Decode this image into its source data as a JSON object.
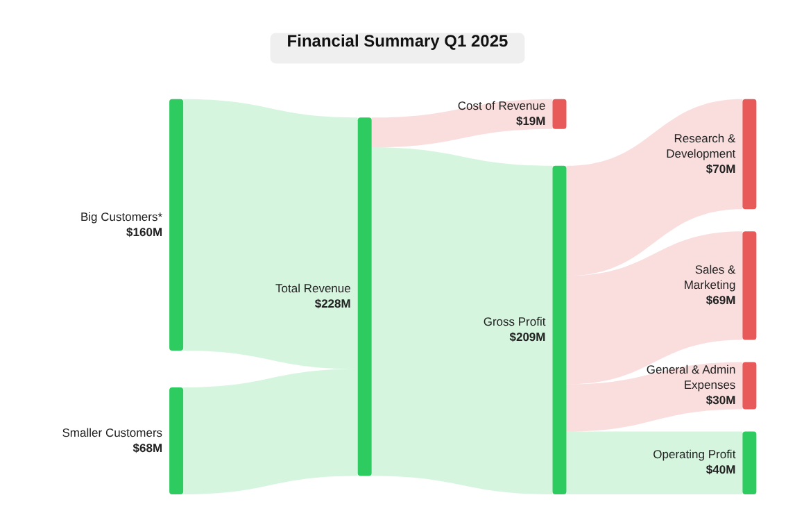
{
  "chart_data": {
    "type": "other",
    "title": "Financial Summary Q1 2025",
    "categories": [
      "Big Customers*",
      "Smaller Customers",
      "Total Revenue",
      "Cost of Revenue",
      "Gross Profit",
      "Research & Development",
      "Sales & Marketing",
      "General & Admin Expenses",
      "Operating Profit"
    ],
    "values": [
      160,
      68,
      228,
      19,
      209,
      70,
      69,
      30,
      40
    ],
    "value_labels": [
      "$160M",
      "$68M",
      "$228M",
      "$19M",
      "$209M",
      "$70M",
      "$69M",
      "$30M",
      "$40M"
    ],
    "colors": [
      "#2ecc60",
      "#2ecc60",
      "#2ecc60",
      "#e85a5a",
      "#2ecc60",
      "#e85a5a",
      "#e85a5a",
      "#e85a5a",
      "#2ecc60"
    ]
  }
}
